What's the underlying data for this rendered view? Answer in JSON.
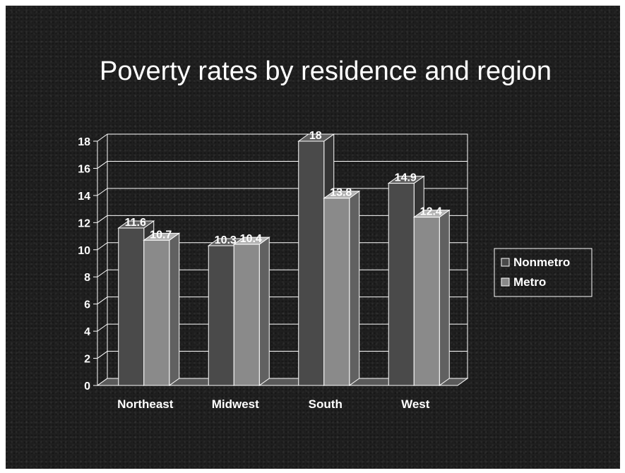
{
  "slide": {
    "title": "Poverty rates by residence and region"
  },
  "chart_data": {
    "type": "bar",
    "title": "Poverty rates by residence and region",
    "xlabel": "",
    "ylabel": "",
    "categories": [
      "Northeast",
      "Midwest",
      "South",
      "West"
    ],
    "series": [
      {
        "name": "Nonmetro",
        "values": [
          11.6,
          10.3,
          18,
          14.9
        ],
        "color": "#4a4a4a"
      },
      {
        "name": "Metro",
        "values": [
          10.7,
          10.4,
          13.8,
          12.4
        ],
        "color": "#8a8a8a"
      }
    ],
    "data_labels": [
      [
        "11.6",
        "10.3",
        "18",
        "14.9"
      ],
      [
        "10.7",
        "10.4",
        "13.8",
        "12.4"
      ]
    ],
    "yticks": [
      "0",
      "2",
      "4",
      "6",
      "8",
      "10",
      "12",
      "14",
      "16",
      "18"
    ],
    "ylim": [
      0,
      18
    ],
    "grid": true,
    "legend_position": "right",
    "three_d": true
  },
  "colors": {
    "background": "#1f1f1f",
    "text": "#ffffff",
    "gridline": "#ffffff"
  }
}
